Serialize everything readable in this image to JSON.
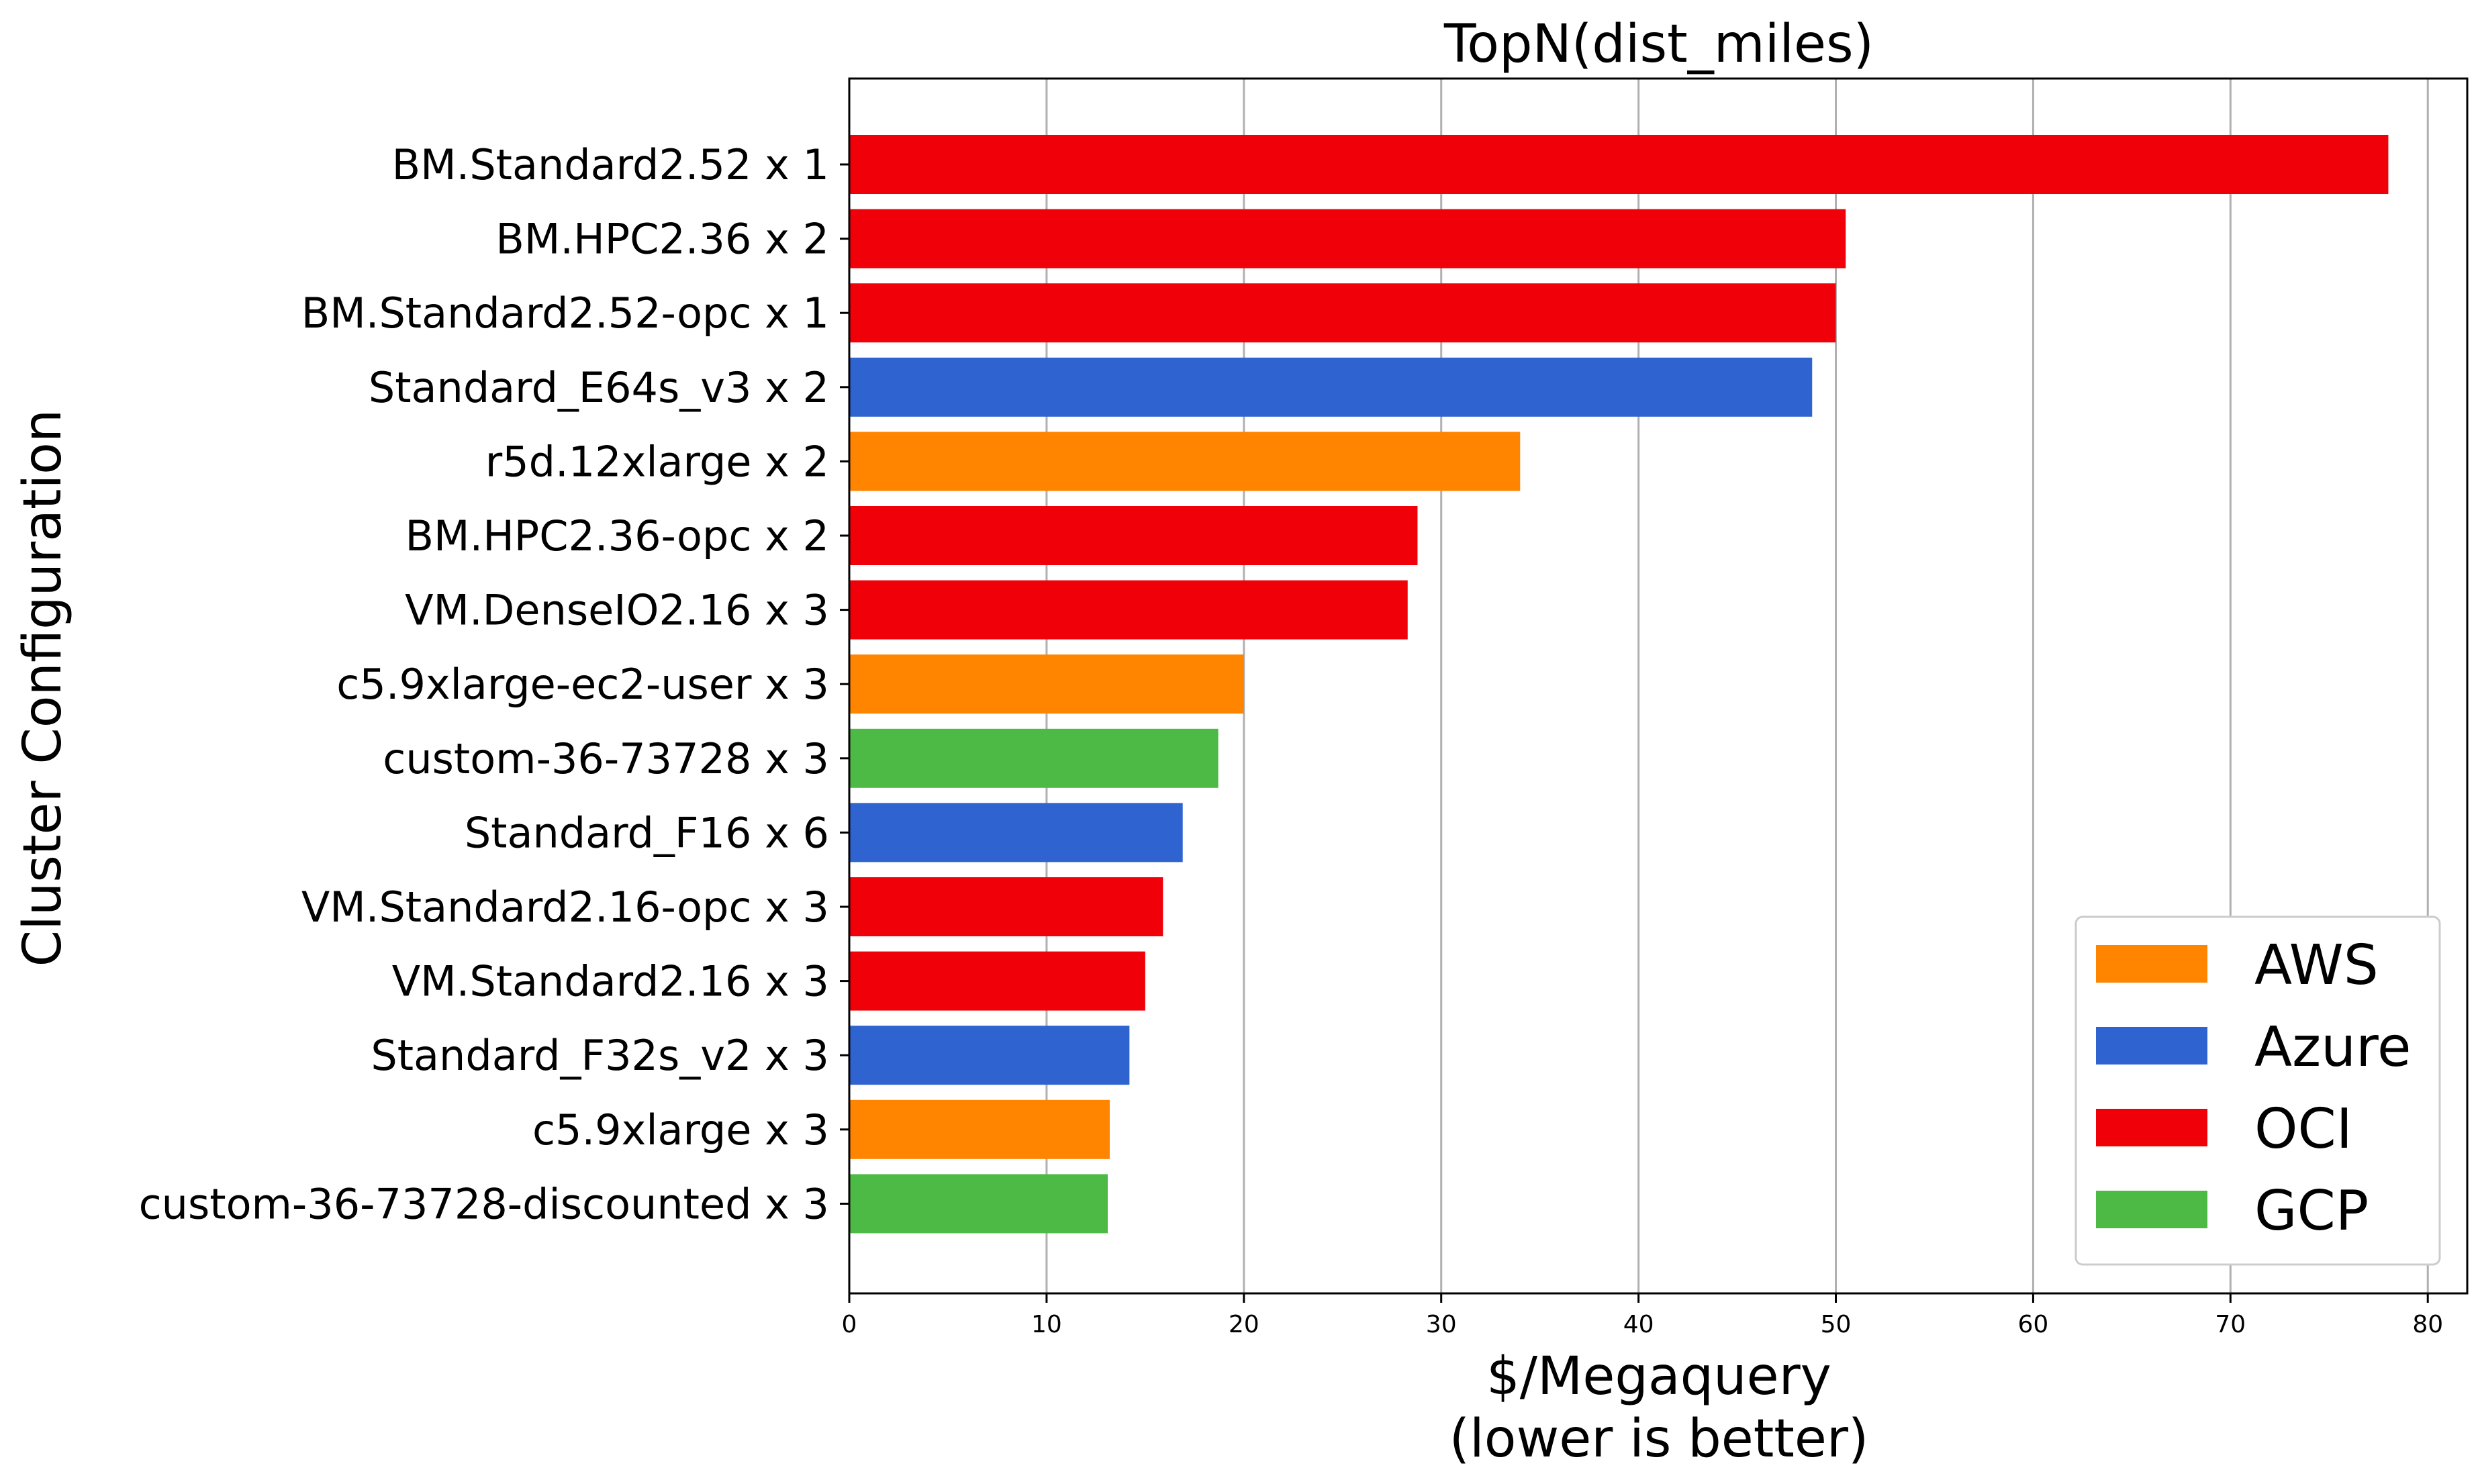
{
  "chart_data": {
    "type": "bar",
    "orientation": "horizontal",
    "title": "TopN(dist_miles)",
    "xlabel": [
      "$/Megaquery",
      "(lower is better)"
    ],
    "ylabel": "Cluster Configuration",
    "xlim": [
      0,
      82
    ],
    "xticks": [
      0,
      10,
      20,
      30,
      40,
      50,
      60,
      70,
      80
    ],
    "grid": "vertical",
    "legend_position": "lower-right",
    "providers": [
      {
        "name": "AWS",
        "color": "#ff8400"
      },
      {
        "name": "Azure",
        "color": "#2f63cf"
      },
      {
        "name": "OCI",
        "color": "#f00008"
      },
      {
        "name": "GCP",
        "color": "#4cba44"
      }
    ],
    "bars": [
      {
        "category": "BM.Standard2.52 x 1",
        "value": 78.0,
        "provider": "OCI"
      },
      {
        "category": "BM.HPC2.36 x 2",
        "value": 50.5,
        "provider": "OCI"
      },
      {
        "category": "BM.Standard2.52-opc x 1",
        "value": 50.0,
        "provider": "OCI"
      },
      {
        "category": "Standard_E64s_v3 x 2",
        "value": 48.8,
        "provider": "Azure"
      },
      {
        "category": "r5d.12xlarge x 2",
        "value": 34.0,
        "provider": "AWS"
      },
      {
        "category": "BM.HPC2.36-opc x 2",
        "value": 28.8,
        "provider": "OCI"
      },
      {
        "category": "VM.DenseIO2.16 x 3",
        "value": 28.3,
        "provider": "OCI"
      },
      {
        "category": "c5.9xlarge-ec2-user x 3",
        "value": 20.0,
        "provider": "AWS"
      },
      {
        "category": "custom-36-73728 x 3",
        "value": 18.7,
        "provider": "GCP"
      },
      {
        "category": "Standard_F16 x 6",
        "value": 16.9,
        "provider": "Azure"
      },
      {
        "category": "VM.Standard2.16-opc x 3",
        "value": 15.9,
        "provider": "OCI"
      },
      {
        "category": "VM.Standard2.16 x 3",
        "value": 15.0,
        "provider": "OCI"
      },
      {
        "category": "Standard_F32s_v2 x 3",
        "value": 14.2,
        "provider": "Azure"
      },
      {
        "category": "c5.9xlarge x 3",
        "value": 13.2,
        "provider": "AWS"
      },
      {
        "category": "custom-36-73728-discounted x 3",
        "value": 13.1,
        "provider": "GCP"
      }
    ]
  }
}
